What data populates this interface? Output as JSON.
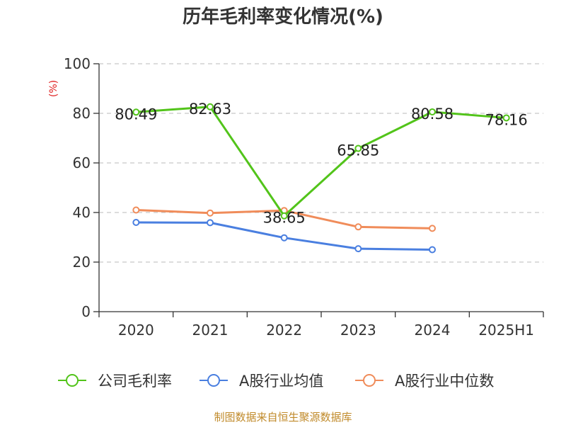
{
  "chart_data": {
    "type": "line",
    "title": "历年毛利率变化情况(%)",
    "ylabel": "(%)",
    "xlabel": "",
    "categories": [
      "2020",
      "2021",
      "2022",
      "2023",
      "2024",
      "2025H1"
    ],
    "ylim": [
      0,
      100
    ],
    "yticks": [
      0,
      20,
      40,
      60,
      80,
      100
    ],
    "grid": true,
    "legend_position": "bottom",
    "series": [
      {
        "name": "公司毛利率",
        "color": "#52c41a",
        "values": [
          80.49,
          82.63,
          38.65,
          65.85,
          80.58,
          78.16
        ],
        "labels": [
          "80.49",
          "82.63",
          "38.65",
          "65.85",
          "80.58",
          "78.16"
        ]
      },
      {
        "name": "A股行业均值",
        "color": "#4a7fe0",
        "values": [
          36.0,
          35.9,
          29.8,
          25.4,
          25.0,
          null
        ]
      },
      {
        "name": "A股行业中位数",
        "color": "#f08c5a",
        "values": [
          41.0,
          39.8,
          40.8,
          34.2,
          33.6,
          null
        ]
      }
    ]
  },
  "footer": {
    "source": "制图数据来自恒生聚源数据库"
  }
}
